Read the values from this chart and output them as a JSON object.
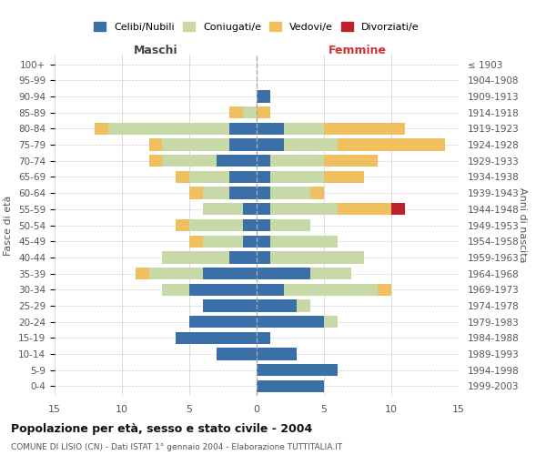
{
  "age_groups_bottom_to_top": [
    "0-4",
    "5-9",
    "10-14",
    "15-19",
    "20-24",
    "25-29",
    "30-34",
    "35-39",
    "40-44",
    "45-49",
    "50-54",
    "55-59",
    "60-64",
    "65-69",
    "70-74",
    "75-79",
    "80-84",
    "85-89",
    "90-94",
    "95-99",
    "100+"
  ],
  "birth_years_bottom_to_top": [
    "1999-2003",
    "1994-1998",
    "1989-1993",
    "1984-1988",
    "1979-1983",
    "1974-1978",
    "1969-1973",
    "1964-1968",
    "1959-1963",
    "1954-1958",
    "1949-1953",
    "1944-1948",
    "1939-1943",
    "1934-1938",
    "1929-1933",
    "1924-1928",
    "1919-1923",
    "1914-1918",
    "1909-1913",
    "1904-1908",
    "≤ 1903"
  ],
  "maschi": {
    "celibi": [
      0,
      0,
      3,
      6,
      5,
      4,
      5,
      4,
      2,
      1,
      1,
      1,
      2,
      2,
      3,
      2,
      2,
      0,
      0,
      0,
      0
    ],
    "coniugati": [
      0,
      0,
      0,
      0,
      0,
      0,
      2,
      4,
      5,
      3,
      4,
      3,
      2,
      3,
      4,
      5,
      9,
      1,
      0,
      0,
      0
    ],
    "vedovi": [
      0,
      0,
      0,
      0,
      0,
      0,
      0,
      1,
      0,
      1,
      1,
      0,
      1,
      1,
      1,
      1,
      1,
      1,
      0,
      0,
      0
    ],
    "divorziati": [
      0,
      0,
      0,
      0,
      0,
      0,
      0,
      0,
      0,
      0,
      0,
      0,
      0,
      0,
      0,
      0,
      0,
      0,
      0,
      0,
      0
    ]
  },
  "femmine": {
    "nubili": [
      5,
      6,
      3,
      1,
      5,
      3,
      2,
      4,
      1,
      1,
      1,
      1,
      1,
      1,
      1,
      2,
      2,
      0,
      1,
      0,
      0
    ],
    "coniugate": [
      0,
      0,
      0,
      0,
      1,
      1,
      7,
      3,
      7,
      5,
      3,
      5,
      3,
      4,
      4,
      4,
      3,
      0,
      0,
      0,
      0
    ],
    "vedove": [
      0,
      0,
      0,
      0,
      0,
      0,
      1,
      0,
      0,
      0,
      0,
      4,
      1,
      3,
      4,
      8,
      6,
      1,
      0,
      0,
      0
    ],
    "divorziate": [
      0,
      0,
      0,
      0,
      0,
      0,
      0,
      0,
      0,
      0,
      0,
      1,
      0,
      0,
      0,
      0,
      0,
      0,
      0,
      0,
      0
    ]
  },
  "colors": {
    "celibi_nubili": "#3a6fa8",
    "coniugati": "#c8d9a8",
    "vedovi": "#f0c060",
    "divorziati": "#c0202a"
  },
  "xlim": 15,
  "title": "Popolazione per età, sesso e stato civile - 2004",
  "subtitle": "COMUNE DI LISIO (CN) - Dati ISTAT 1° gennaio 2004 - Elaborazione TUTTITALIA.IT",
  "ylabel_left": "Fasce di età",
  "ylabel_right": "Anni di nascita",
  "xlabel_maschi": "Maschi",
  "xlabel_femmine": "Femmine",
  "legend_labels": [
    "Celibi/Nubili",
    "Coniugati/e",
    "Vedovi/e",
    "Divorziati/e"
  ],
  "background_color": "#ffffff",
  "grid_color": "#cccccc"
}
